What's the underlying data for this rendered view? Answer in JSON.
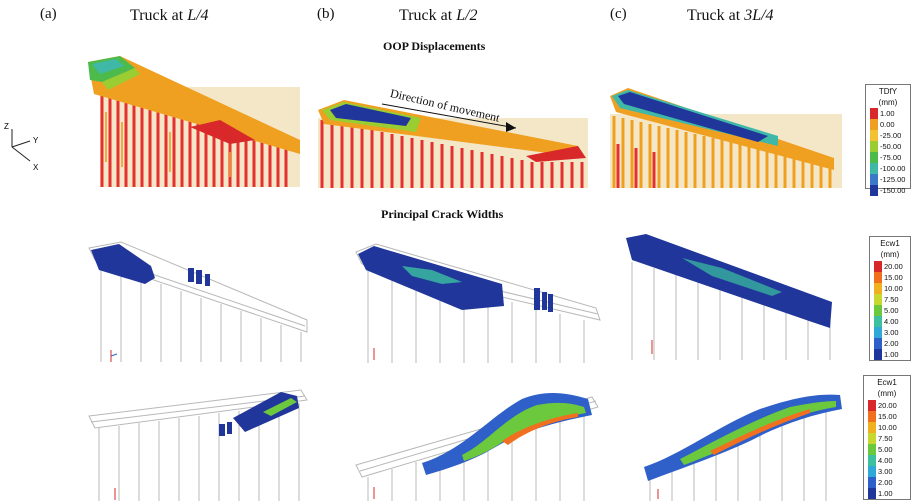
{
  "columns": [
    {
      "letter": "(a)",
      "title_prefix": "Truck at ",
      "title_pos": "L/4"
    },
    {
      "letter": "(b)",
      "title_prefix": "Truck at ",
      "title_pos": "L/2"
    },
    {
      "letter": "(c)",
      "title_prefix": "Truck at ",
      "title_pos": "3L/4"
    }
  ],
  "sections": {
    "oop": "OOP Displacements",
    "crack": "Principal Crack Widths"
  },
  "annotation": "Direction of movement",
  "axes": {
    "z": "Z",
    "y": "Y",
    "x": "X"
  },
  "legend_disp": {
    "title_1": "TDfY",
    "title_2": "(mm)",
    "labels": [
      "1.00",
      "0.00",
      "-25.00",
      "-50.00",
      "-75.00",
      "-100.00",
      "-125.00",
      "-150.00"
    ],
    "colors": [
      "#d8282a",
      "#f0a020",
      "#f2c230",
      "#9acd32",
      "#4cbb4c",
      "#3fb8a8",
      "#3a78c8",
      "#20369a"
    ]
  },
  "legend_crack_1": {
    "title_1": "Ecw1",
    "title_2": "(mm)",
    "labels": [
      "20.00",
      "15.00",
      "10.00",
      "7.50",
      "5.00",
      "4.00",
      "3.00",
      "2.00",
      "1.00"
    ],
    "colors": [
      "#d8282a",
      "#f07020",
      "#f0b020",
      "#c8d830",
      "#6cc83c",
      "#3cc0a0",
      "#30a8d8",
      "#2f5fc8",
      "#20369a"
    ]
  },
  "legend_crack_2": {
    "title_1": "Ecw1",
    "title_2": "(mm)",
    "labels": [
      "20.00",
      "15.00",
      "10.00",
      "7.50",
      "5.00",
      "4.00",
      "3.00",
      "2.00",
      "1.00"
    ],
    "colors": [
      "#d8282a",
      "#f07020",
      "#f0b020",
      "#c8d830",
      "#6cc83c",
      "#3cc0a0",
      "#30a8d8",
      "#2f5fc8",
      "#20369a"
    ]
  }
}
